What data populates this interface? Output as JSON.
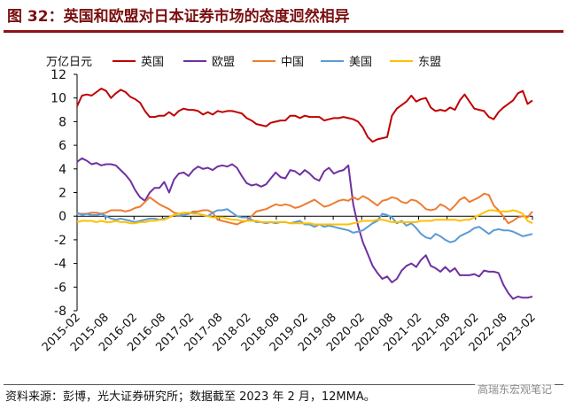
{
  "title": "图 32：英国和欧盟对日本证券市场的态度迥然相异",
  "source": "资料来源：彭博，光大证券研究所；数据截至 2023 年 2 月，12MMA。",
  "watermark": "高瑞东宏观笔记",
  "chart_data": {
    "type": "line",
    "unit_label": "万亿日元",
    "ylim": [
      -8,
      12
    ],
    "yticks": [
      -8,
      -6,
      -4,
      -2,
      0,
      2,
      4,
      6,
      8,
      10,
      12
    ],
    "xlim": [
      "2015-02",
      "2023-02"
    ],
    "xticks": [
      "2015-02",
      "2015-08",
      "2016-02",
      "2016-08",
      "2017-02",
      "2017-08",
      "2018-02",
      "2018-08",
      "2019-02",
      "2019-08",
      "2020-02",
      "2020-08",
      "2021-02",
      "2021-08",
      "2022-02",
      "2022-08",
      "2023-02"
    ],
    "legend_position": "top",
    "grid": false,
    "series": [
      {
        "name": "英国",
        "color": "#c00000",
        "values": [
          9.3,
          10.2,
          10.3,
          10.2,
          10.5,
          10.8,
          10.6,
          10.0,
          10.4,
          10.7,
          10.5,
          10.1,
          9.9,
          9.6,
          8.9,
          8.4,
          8.4,
          8.5,
          8.5,
          8.8,
          8.5,
          8.9,
          9.1,
          9.0,
          9.0,
          8.9,
          8.6,
          8.8,
          8.6,
          8.9,
          8.8,
          8.9,
          8.9,
          8.8,
          8.7,
          8.3,
          8.1,
          7.8,
          7.7,
          7.6,
          7.9,
          8.0,
          8.1,
          8.1,
          8.5,
          8.5,
          8.3,
          8.5,
          8.4,
          8.4,
          8.4,
          8.1,
          8.2,
          8.3,
          8.3,
          8.4,
          8.3,
          8.2,
          8.0,
          7.5,
          6.7,
          6.3,
          6.5,
          6.6,
          6.7,
          8.5,
          9.1,
          9.4,
          9.7,
          10.2,
          9.7,
          9.9,
          10.0,
          9.2,
          8.9,
          9.0,
          8.9,
          9.2,
          9.0,
          9.8,
          10.3,
          9.7,
          9.1,
          9.0,
          8.9,
          8.4,
          8.2,
          8.8,
          9.2,
          9.5,
          9.8,
          10.4,
          10.6,
          9.5,
          9.8
        ]
      },
      {
        "name": "欧盟",
        "color": "#7030a0",
        "values": [
          4.6,
          4.9,
          4.7,
          4.4,
          4.5,
          4.3,
          4.4,
          4.4,
          4.3,
          3.9,
          3.5,
          3.0,
          2.2,
          1.6,
          1.3,
          2.0,
          2.4,
          2.4,
          2.9,
          2.0,
          3.1,
          3.6,
          3.7,
          3.4,
          3.9,
          4.2,
          4.0,
          4.1,
          3.9,
          4.2,
          4.3,
          4.2,
          4.4,
          4.1,
          3.4,
          2.8,
          2.6,
          2.7,
          2.5,
          2.7,
          3.2,
          3.7,
          3.3,
          3.2,
          3.9,
          3.8,
          3.5,
          3.9,
          3.6,
          3.2,
          3.0,
          3.8,
          4.1,
          3.6,
          3.8,
          3.9,
          4.3,
          1.0,
          -0.8,
          -2.2,
          -3.2,
          -4.2,
          -4.8,
          -5.3,
          -5.1,
          -5.6,
          -5.3,
          -4.6,
          -4.2,
          -4.0,
          -4.3,
          -3.7,
          -3.3,
          -4.2,
          -4.4,
          -4.7,
          -4.3,
          -4.7,
          -4.4,
          -5.0,
          -5.0,
          -5.0,
          -4.9,
          -5.1,
          -4.6,
          -4.7,
          -4.7,
          -4.8,
          -5.8,
          -6.5,
          -7.0,
          -6.8,
          -6.9,
          -6.9,
          -6.8
        ]
      },
      {
        "name": "中国",
        "color": "#ed7d31",
        "values": [
          0.2,
          0.2,
          0.2,
          0.3,
          0.3,
          0.2,
          0.3,
          0.5,
          0.5,
          0.5,
          0.4,
          0.5,
          0.7,
          0.8,
          1.2,
          1.6,
          1.3,
          1.0,
          0.8,
          0.6,
          0.3,
          0.2,
          0.1,
          0.2,
          0.4,
          0.4,
          0.5,
          0.5,
          0.3,
          -0.3,
          -0.4,
          -0.5,
          -0.6,
          -0.7,
          -0.5,
          -0.4,
          0.0,
          0.4,
          0.5,
          0.6,
          0.8,
          1.0,
          0.9,
          1.0,
          0.9,
          0.7,
          0.8,
          1.0,
          1.2,
          1.4,
          1.1,
          0.8,
          0.9,
          1.1,
          1.3,
          1.4,
          1.3,
          1.6,
          1.4,
          1.7,
          1.5,
          1.2,
          0.9,
          1.3,
          1.4,
          1.6,
          1.5,
          1.2,
          1.1,
          1.4,
          1.3,
          1.0,
          0.6,
          0.5,
          0.6,
          1.0,
          0.8,
          0.5,
          0.9,
          1.4,
          1.6,
          1.2,
          1.4,
          1.6,
          1.9,
          1.8,
          0.9,
          0.5,
          0.0,
          -0.6,
          -0.4,
          -0.1,
          0.0,
          -0.1,
          0.4
        ]
      },
      {
        "name": "美国",
        "color": "#5b9bd5",
        "values": [
          0.3,
          0.1,
          0.2,
          0.1,
          0.1,
          0.2,
          0.0,
          -0.2,
          -0.3,
          -0.2,
          -0.3,
          -0.4,
          -0.5,
          -0.4,
          -0.3,
          -0.2,
          -0.2,
          -0.3,
          -0.2,
          -0.1,
          0.1,
          0.0,
          0.1,
          0.2,
          0.3,
          0.2,
          0.1,
          0.0,
          0.3,
          0.5,
          0.5,
          0.6,
          0.3,
          0.0,
          -0.1,
          -0.1,
          -0.3,
          -0.5,
          -0.5,
          -0.6,
          -0.5,
          -0.6,
          -0.5,
          -0.5,
          -0.6,
          -0.5,
          -0.4,
          -0.7,
          -0.7,
          -0.9,
          -0.7,
          -0.9,
          -0.8,
          -0.9,
          -1.0,
          -1.1,
          -1.2,
          -1.4,
          -1.3,
          -1.2,
          -0.9,
          -0.6,
          -0.4,
          0.2,
          0.1,
          -0.1,
          -0.6,
          -0.4,
          -0.8,
          -0.6,
          -1.0,
          -1.5,
          -1.8,
          -1.9,
          -1.5,
          -1.7,
          -2.0,
          -2.2,
          -2.1,
          -1.7,
          -1.5,
          -1.3,
          -1.0,
          -0.9,
          -1.2,
          -1.5,
          -1.2,
          -1.1,
          -1.2,
          -1.2,
          -1.3,
          -1.5,
          -1.7,
          -1.6,
          -1.5
        ]
      },
      {
        "name": "东盟",
        "color": "#ffc000",
        "values": [
          -0.5,
          -0.4,
          -0.4,
          -0.4,
          -0.5,
          -0.4,
          -0.5,
          -0.5,
          -0.4,
          -0.5,
          -0.5,
          -0.6,
          -0.6,
          -0.5,
          -0.5,
          -0.4,
          -0.4,
          -0.3,
          -0.3,
          -0.1,
          0.1,
          0.2,
          0.3,
          0.3,
          0.2,
          0.2,
          0.1,
          0.0,
          -0.1,
          -0.1,
          -0.1,
          -0.2,
          -0.3,
          -0.3,
          -0.4,
          -0.4,
          -0.4,
          -0.4,
          -0.5,
          -0.5,
          -0.5,
          -0.5,
          -0.5,
          -0.5,
          -0.6,
          -0.6,
          -0.6,
          -0.6,
          -0.6,
          -0.7,
          -0.7,
          -0.7,
          -0.7,
          -0.7,
          -0.7,
          -0.7,
          -0.7,
          -0.6,
          -0.5,
          -0.4,
          -0.4,
          -0.4,
          -0.3,
          -0.3,
          -0.4,
          -0.5,
          -0.5,
          -0.5,
          -0.5,
          -0.5,
          -0.5,
          -0.4,
          -0.4,
          -0.4,
          -0.3,
          -0.3,
          -0.3,
          -0.3,
          -0.3,
          -0.4,
          -0.3,
          -0.3,
          -0.1,
          0.1,
          0.3,
          0.5,
          0.5,
          0.4,
          0.4,
          0.4,
          0.5,
          0.4,
          0.2,
          -0.4,
          -0.6
        ]
      }
    ]
  }
}
